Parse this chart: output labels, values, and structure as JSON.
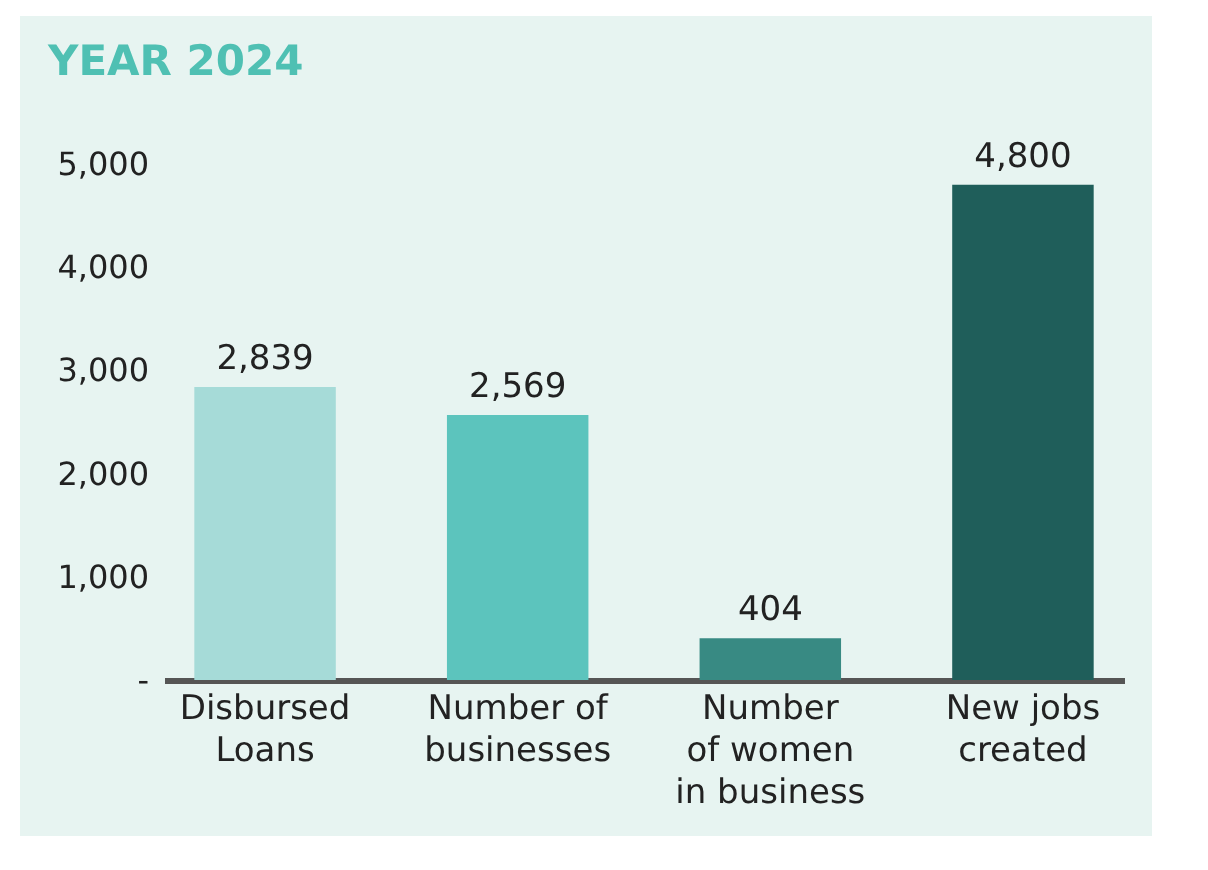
{
  "chart_data": {
    "type": "bar",
    "title": "YEAR 2024",
    "categories": [
      "Disbursed\nLoans",
      "Number of\nbusinesses",
      "Number\nof women\nin business",
      "New jobs\ncreated"
    ],
    "values": [
      2839,
      2569,
      404,
      4800
    ],
    "colors": [
      "#a6dbd8",
      "#5cc4bd",
      "#388a83",
      "#1f5e5a"
    ],
    "ylim": [
      0,
      5000
    ],
    "yticks": [
      {
        "value": 0,
        "label": "-"
      },
      {
        "value": 1000,
        "label": "1,000"
      },
      {
        "value": 2000,
        "label": "2,000"
      },
      {
        "value": 3000,
        "label": "3,000"
      },
      {
        "value": 4000,
        "label": "4,000"
      },
      {
        "value": 5000,
        "label": "5,000"
      }
    ],
    "value_labels": [
      "2,839",
      "2,569",
      "404",
      "4,800"
    ],
    "grid": false
  }
}
